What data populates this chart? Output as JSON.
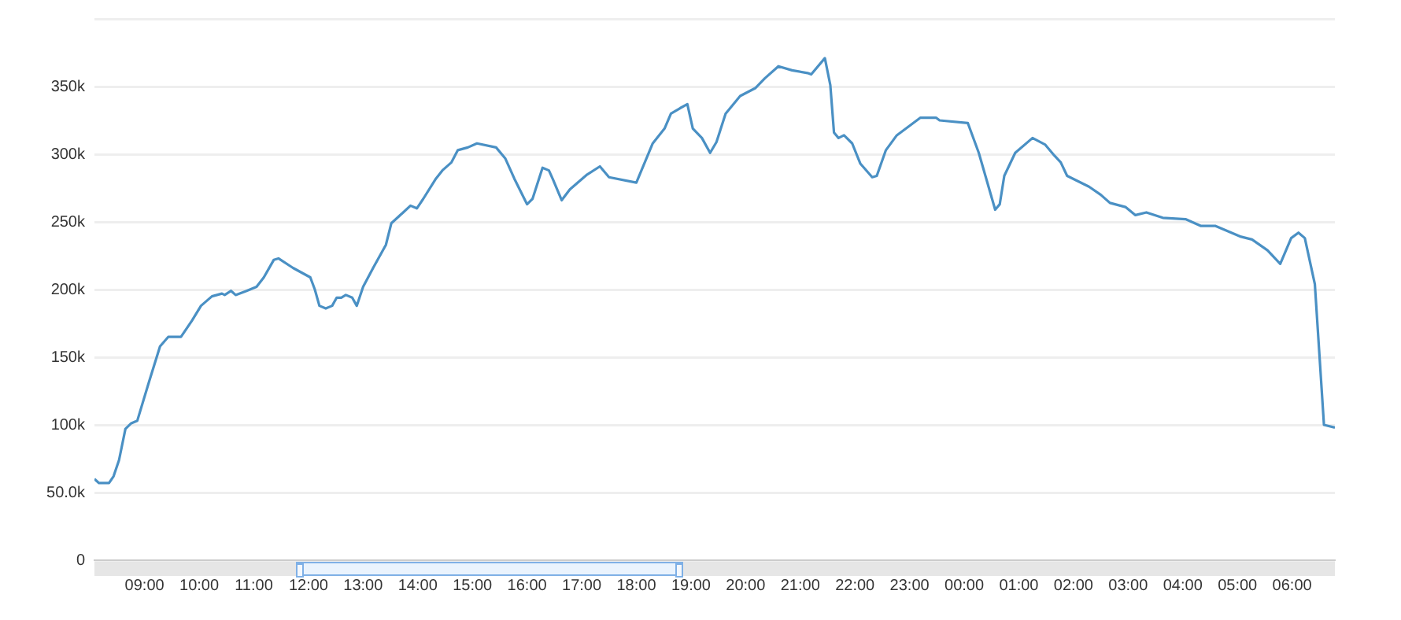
{
  "chart_data": {
    "type": "line",
    "x": [
      "--01-01T08:05",
      "--01-01T08:10",
      "--01-01T08:21",
      "--01-01T08:26",
      "--01-01T08:32",
      "--01-01T08:39",
      "--01-01T08:45",
      "--01-01T08:52",
      "--01-01T09:05",
      "--01-01T09:17",
      "--01-01T09:26",
      "--01-01T09:40",
      "--01-01T09:52",
      "--01-01T10:02",
      "--01-01T10:14",
      "--01-01T10:25",
      "--01-01T10:28",
      "--01-01T10:35",
      "--01-01T10:40",
      "--01-01T10:52",
      "--01-01T11:03",
      "--01-01T11:11",
      "--01-01T11:22",
      "--01-01T11:27",
      "--01-01T11:43",
      "--01-01T12:02",
      "--01-01T12:07",
      "--01-01T12:12",
      "--01-01T12:19",
      "--01-01T12:26",
      "--01-01T12:31",
      "--01-01T12:36",
      "--01-01T12:41",
      "--01-01T12:48",
      "--01-01T12:53",
      "--01-01T13:00",
      "--01-01T13:11",
      "--01-01T13:25",
      "--01-01T13:31",
      "--01-01T13:44",
      "--01-01T13:52",
      "--01-01T13:59",
      "--01-01T14:06",
      "--01-01T14:20",
      "--01-01T14:27",
      "--01-01T14:37",
      "--01-01T14:44",
      "--01-01T14:55",
      "--01-01T15:05",
      "--01-01T15:26",
      "--01-01T15:36",
      "--01-01T15:46",
      "--01-01T16:00",
      "--01-01T16:06",
      "--01-01T16:17",
      "--01-01T16:24",
      "--01-01T16:28",
      "--01-01T16:38",
      "--01-01T16:47",
      "--01-01T17:06",
      "--01-01T17:20",
      "--01-01T17:30",
      "--01-01T18:00",
      "--01-01T18:18",
      "--01-01T18:31",
      "--01-01T18:38",
      "--01-01T18:48",
      "--01-01T18:56",
      "--01-01T19:02",
      "--01-01T19:12",
      "--01-01T19:21",
      "--01-01T19:28",
      "--01-01T19:38",
      "--01-01T19:54",
      "--01-01T20:11",
      "--01-01T20:21",
      "--01-01T20:36",
      "--01-01T20:51",
      "--01-01T21:08",
      "--01-01T21:12",
      "--01-01T21:27",
      "--01-01T21:33",
      "--01-01T21:37",
      "--01-01T21:42",
      "--01-01T21:48",
      "--01-01T21:57",
      "--01-01T22:06",
      "--01-01T22:19",
      "--01-01T22:24",
      "--01-01T22:34",
      "--01-01T22:46",
      "--01-01T23:12",
      "--01-01T23:29",
      "--01-01T23:33",
      "--01-02T00:04",
      "--01-02T00:16",
      "--01-02T00:34",
      "--01-02T00:39",
      "--01-02T00:44",
      "--01-02T00:56",
      "--01-02T01:15",
      "--01-02T01:29",
      "--01-02T01:39",
      "--01-02T01:46",
      "--01-02T01:53",
      "--01-02T02:17",
      "--01-02T02:30",
      "--01-02T02:40",
      "--01-02T02:57",
      "--01-02T03:08",
      "--01-02T03:20",
      "--01-02T03:38",
      "--01-02T04:03",
      "--01-02T04:20",
      "--01-02T04:36",
      "--01-02T05:04",
      "--01-02T05:16",
      "--01-02T05:33",
      "--01-02T05:47",
      "--01-02T05:59",
      "--01-02T06:07",
      "--01-02T06:14",
      "--01-02T06:25",
      "--01-02T06:35",
      "--01-02T06:47"
    ],
    "series": [
      {
        "color": "#4a90c4",
        "values": [
          60000,
          57000,
          57000,
          62000,
          74000,
          97000,
          101000,
          103000,
          132000,
          158000,
          165000,
          165000,
          177000,
          188000,
          195000,
          197000,
          196000,
          199000,
          196000,
          199000,
          202000,
          209000,
          222000,
          223000,
          216000,
          209000,
          200000,
          188000,
          186000,
          188000,
          194000,
          194000,
          196000,
          194000,
          188000,
          202000,
          216000,
          233000,
          249000,
          257000,
          262000,
          260000,
          267000,
          282000,
          288000,
          294000,
          303000,
          305000,
          308000,
          305000,
          297000,
          282000,
          263000,
          267000,
          290000,
          288000,
          282000,
          266000,
          274000,
          285000,
          291000,
          283000,
          279000,
          308000,
          319000,
          330000,
          334000,
          337000,
          319000,
          312000,
          301000,
          309000,
          330000,
          343000,
          349000,
          356000,
          365000,
          362000,
          360000,
          359000,
          371000,
          351000,
          316000,
          312000,
          314000,
          308000,
          293000,
          283000,
          284000,
          303000,
          314000,
          327000,
          327000,
          325000,
          323000,
          301000,
          259000,
          263000,
          284000,
          301000,
          312000,
          307000,
          299000,
          294000,
          284000,
          276000,
          270000,
          264000,
          261000,
          255000,
          257000,
          253000,
          252000,
          247000,
          247000,
          239000,
          237000,
          229000,
          219000,
          238000,
          242000,
          238000,
          204000,
          100000,
          98000
        ]
      }
    ],
    "xlim": [
      "--01-01T08:05",
      "--01-02T06:47"
    ],
    "xticks": [
      {
        "value": "--01-01T09:00",
        "label": "09:00"
      },
      {
        "value": "--01-01T10:00",
        "label": "10:00"
      },
      {
        "value": "--01-01T11:00",
        "label": "11:00"
      },
      {
        "value": "--01-01T12:00",
        "label": "12:00"
      },
      {
        "value": "--01-01T13:00",
        "label": "13:00"
      },
      {
        "value": "--01-01T14:00",
        "label": "14:00"
      },
      {
        "value": "--01-01T15:00",
        "label": "15:00"
      },
      {
        "value": "--01-01T16:00",
        "label": "16:00"
      },
      {
        "value": "--01-01T17:00",
        "label": "17:00"
      },
      {
        "value": "--01-01T18:00",
        "label": "18:00"
      },
      {
        "value": "--01-01T19:00",
        "label": "19:00"
      },
      {
        "value": "--01-01T20:00",
        "label": "20:00"
      },
      {
        "value": "--01-01T21:00",
        "label": "21:00"
      },
      {
        "value": "--01-01T22:00",
        "label": "22:00"
      },
      {
        "value": "--01-01T23:00",
        "label": "23:00"
      },
      {
        "value": "--01-02T00:00",
        "label": "00:00"
      },
      {
        "value": "--01-02T01:00",
        "label": "01:00"
      },
      {
        "value": "--01-02T02:00",
        "label": "02:00"
      },
      {
        "value": "--01-02T03:00",
        "label": "03:00"
      },
      {
        "value": "--01-02T04:00",
        "label": "04:00"
      },
      {
        "value": "--01-02T05:00",
        "label": "05:00"
      },
      {
        "value": "--01-02T06:00",
        "label": "06:00"
      }
    ],
    "ylim": [
      0,
      400000
    ],
    "yticks": [
      0,
      {
        "value": 50000,
        "label": "50.0k"
      },
      {
        "value": 100000,
        "label": "100k"
      },
      {
        "value": 150000,
        "label": "150k"
      },
      {
        "value": 200000,
        "label": "200k"
      },
      {
        "value": 250000,
        "label": "250k"
      },
      {
        "value": 300000,
        "label": "300k"
      },
      {
        "value": 350000,
        "label": "350k"
      },
      {
        "value": 400000,
        "label": null
      }
    ],
    "grid": "y",
    "legend": false,
    "marker": "none",
    "line_style": "solid"
  }
}
